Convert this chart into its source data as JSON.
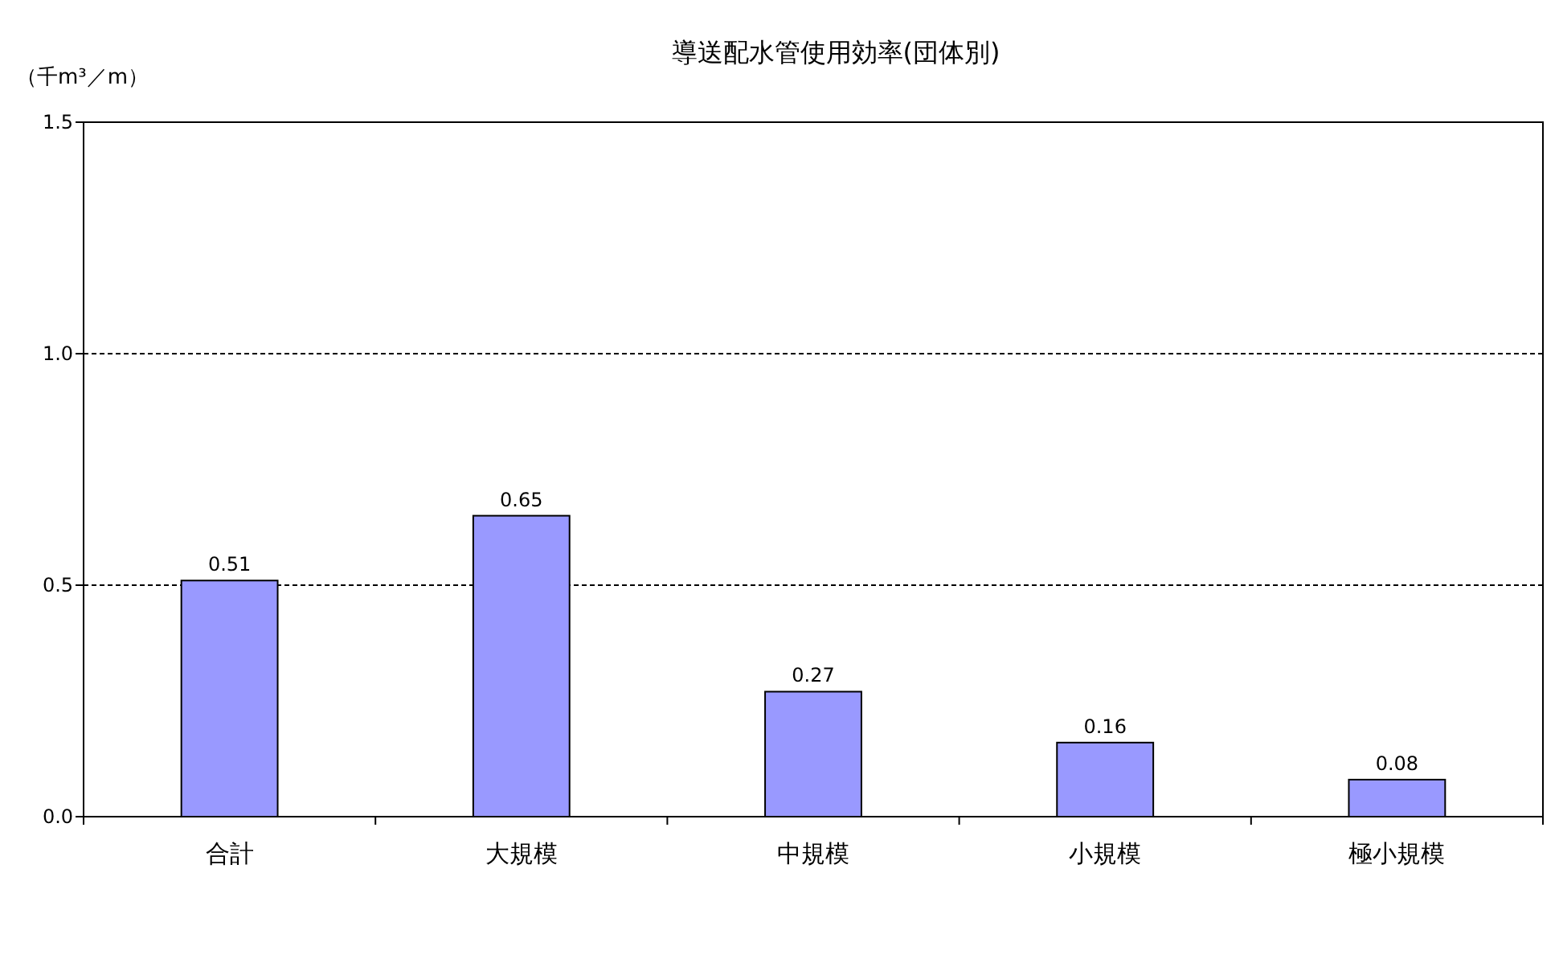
{
  "chart_data": {
    "type": "bar",
    "title": "導送配水管使用効率(団体別)",
    "ylabel": "（千m³／m）",
    "categories": [
      "合計",
      "大規模",
      "中規模",
      "小規模",
      "極小規模"
    ],
    "values": [
      0.51,
      0.65,
      0.27,
      0.16,
      0.08
    ],
    "color": "#9999ff",
    "data_labels": true,
    "ylim": [
      0,
      1.5
    ],
    "yticks": [
      {
        "value": 0,
        "label": "0.0"
      },
      {
        "value": 0.5,
        "label": "0.5"
      },
      {
        "value": 1,
        "label": "1.0"
      },
      {
        "value": 1.5,
        "label": "1.5"
      }
    ],
    "grid": "y"
  }
}
